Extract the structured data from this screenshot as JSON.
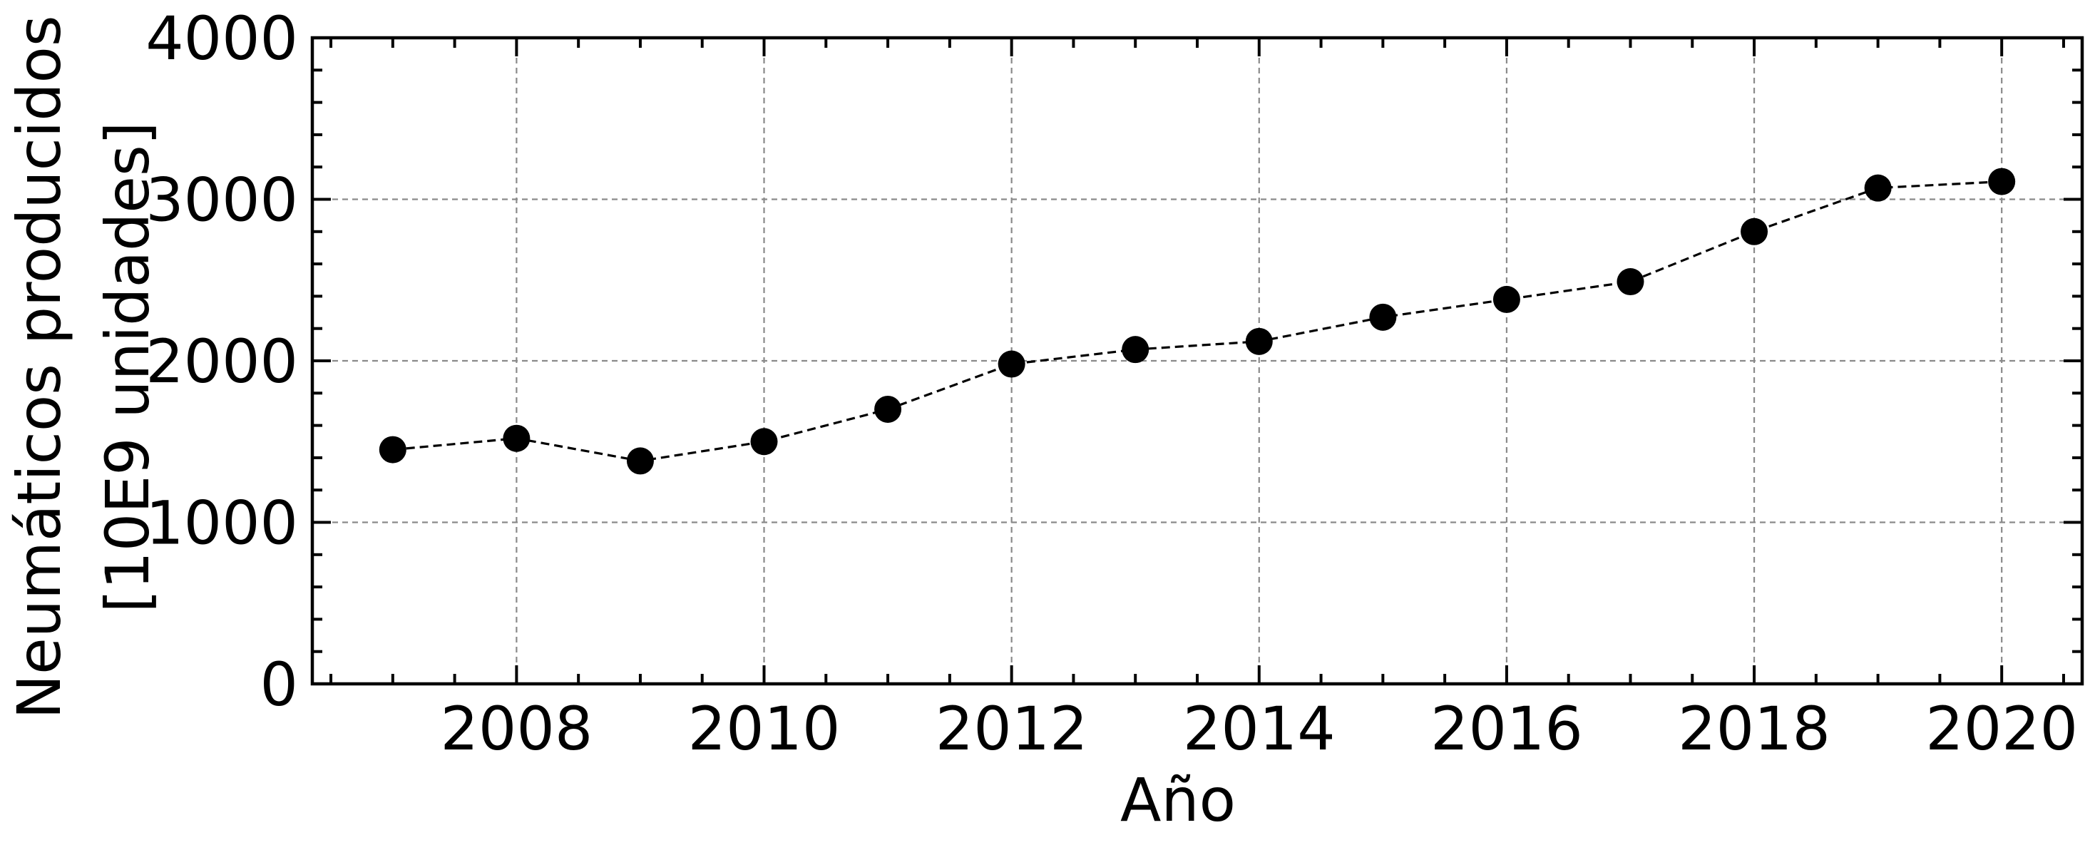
{
  "chart_data": {
    "type": "line",
    "x": [
      2007,
      2008,
      2009,
      2010,
      2011,
      2012,
      2013,
      2014,
      2015,
      2016,
      2017,
      2018,
      2019,
      2020
    ],
    "series": [
      {
        "values": [
          1450,
          1520,
          1380,
          1500,
          1700,
          1980,
          2070,
          2120,
          2270,
          2380,
          2490,
          2800,
          3070,
          3110
        ]
      }
    ],
    "xlabel": "Año",
    "ylabel_lines": [
      "Neumáticos producidos",
      "[10E9 unidades]"
    ],
    "xlim": [
      2006.35,
      2020.65
    ],
    "ylim": [
      0,
      4000
    ],
    "xticks": [
      2008,
      2010,
      2012,
      2014,
      2016,
      2018,
      2020
    ],
    "xtick_labels": [
      "2008",
      "2010",
      "2012",
      "2014",
      "2016",
      "2018",
      "2020"
    ],
    "yticks": [
      0,
      1000,
      2000,
      3000,
      4000
    ],
    "ytick_labels": [
      "0",
      "1000",
      "2000",
      "3000",
      "4000"
    ],
    "grid": true,
    "marker": "circle",
    "line_style": "dashed",
    "colors": {
      "series": "#000000",
      "grid": "#8a8a8a"
    }
  }
}
